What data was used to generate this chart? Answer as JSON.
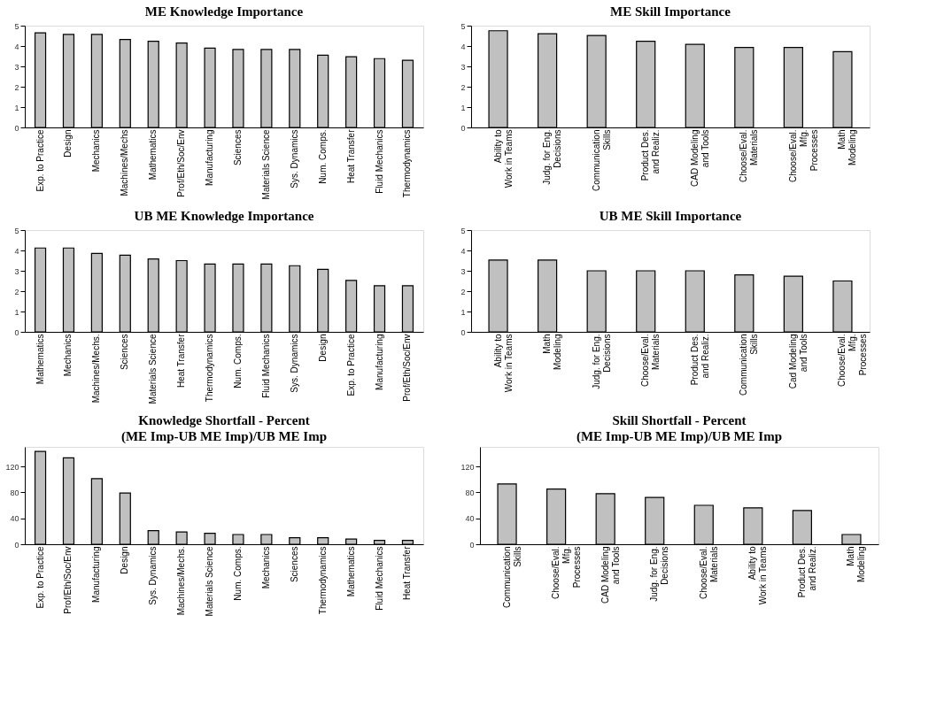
{
  "chart_data": [
    {
      "type": "bar",
      "title": "ME Knowledge Importance",
      "categories": [
        "Exp. to Practice",
        "Design",
        "Mechanics",
        "Machines/Mechs",
        "Mathematics",
        "Prof/Eth/Soc/Env",
        "Manufacturing",
        "Sciences",
        "Materials Science",
        "Sys. Dynamics",
        "Num. Comps.",
        "Heat Transfer",
        "Fluid Mechanics",
        "Thermodynamics"
      ],
      "values": [
        4.65,
        4.57,
        4.57,
        4.32,
        4.23,
        4.15,
        3.9,
        3.83,
        3.83,
        3.83,
        3.55,
        3.47,
        3.38,
        3.3
      ],
      "color": "#c0c0c0",
      "ylim": [
        0,
        5
      ],
      "yticks": [
        0,
        1,
        2,
        3,
        4,
        5
      ],
      "grid": false
    },
    {
      "type": "bar",
      "title": "ME Skill Importance",
      "categories": [
        "Ability to\nWork in Teams",
        "Judg. for Eng.\nDecisions",
        "Communication\nSkills",
        "Product Des.\nand Realiz.",
        "CAD Modeling\nand Tools",
        "Choose/Eval.\nMaterials",
        "Choose/Eval.\nMfg.\nProcesses",
        "Math\nModeling"
      ],
      "values": [
        4.75,
        4.6,
        4.52,
        4.23,
        4.08,
        3.93,
        3.93,
        3.72
      ],
      "color": "#c0c0c0",
      "ylim": [
        0,
        5
      ],
      "yticks": [
        0,
        1,
        2,
        3,
        4,
        5
      ],
      "grid": false
    },
    {
      "type": "bar",
      "title": "UB ME Knowledge Importance",
      "categories": [
        "Mathematics",
        "Mechanics",
        "Machines/Mechs.",
        "Sciences",
        "Materials Science",
        "Heat Transfer",
        "Thermodynamics",
        "Num. Comps.",
        "Fluid Mechanics",
        "Sys. Dynamics",
        "Design",
        "Exp. to Practice",
        "Manufacturing",
        "Prof/Eth/Soc/Env"
      ],
      "values": [
        4.12,
        4.12,
        3.85,
        3.77,
        3.58,
        3.5,
        3.33,
        3.33,
        3.33,
        3.25,
        3.07,
        2.53,
        2.27,
        2.27
      ],
      "color": "#c0c0c0",
      "ylim": [
        0,
        5
      ],
      "yticks": [
        0,
        1,
        2,
        3,
        4,
        5
      ],
      "grid": false
    },
    {
      "type": "bar",
      "title": "UB ME Skill Importance",
      "categories": [
        "Ability to\nWork in Teams",
        "Math\nModeling",
        "Judg. for Eng.\nDecisions",
        "Choose/Eval.\nMaterials",
        "Product Des.\nand Realiz.",
        "Communication\nSkills",
        "Cad Modeling\nand Tools",
        "Choose/Eval.\nMfg.\nProcesses"
      ],
      "values": [
        3.53,
        3.53,
        3.0,
        3.0,
        3.0,
        2.8,
        2.73,
        2.5
      ],
      "color": "#c0c0c0",
      "ylim": [
        0,
        5
      ],
      "yticks": [
        0,
        1,
        2,
        3,
        4,
        5
      ],
      "grid": false
    },
    {
      "type": "bar",
      "title": "Knowledge Shortfall - Percent",
      "subtitle": "(ME Imp-UB ME Imp)/UB ME Imp",
      "categories": [
        "Exp. to Practice",
        "Prof/Eth/Soc/Env",
        "Manufacturing",
        "Design",
        "Sys. Dynamics",
        "Machines/Mechs.",
        "Materials Science",
        "Num. Comps.",
        "Mechanics",
        "Sciences",
        "Thermodynamics",
        "Mathematics",
        "Fluid Mechanics",
        "Heat Transfer"
      ],
      "values": [
        143,
        133,
        101,
        79,
        21,
        19,
        17,
        15,
        15,
        10,
        10,
        8,
        6,
        6
      ],
      "color": "#c0c0c0",
      "ylim": [
        0,
        150
      ],
      "yticks": [
        0,
        40,
        80,
        120
      ],
      "grid": false
    },
    {
      "type": "bar",
      "title": "Skill Shortfall - Percent",
      "subtitle": "(ME Imp-UB ME Imp)/UB ME Imp",
      "categories": [
        "Communication\nSkills",
        "Choose/Eval.\nMfg.\nProcesses",
        "CAD Modeling\nand Tools",
        "Judg. for Eng.\nDecisions",
        "Choose/Eval.\nMaterials",
        "Ability to\nWork in Teams",
        "Product Des.\nand Realiz.",
        "Math\nModeling"
      ],
      "values": [
        93,
        85,
        78,
        72,
        60,
        56,
        52,
        15
      ],
      "color": "#c0c0c0",
      "ylim": [
        0,
        150
      ],
      "yticks": [
        0,
        40,
        80,
        120
      ],
      "grid": false
    }
  ]
}
